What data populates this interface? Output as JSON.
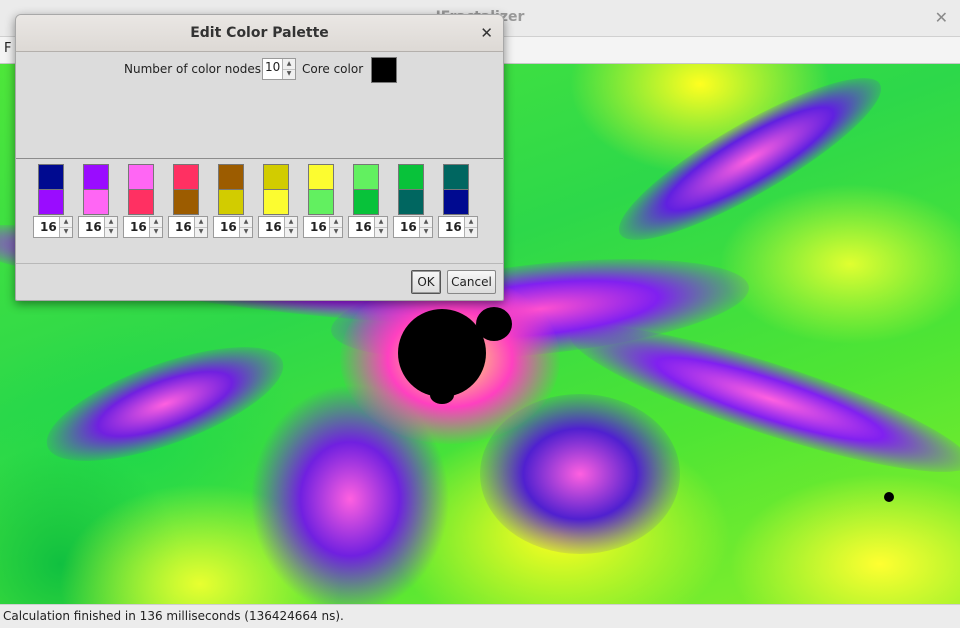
{
  "app": {
    "title": "JFractalizer"
  },
  "menu": {
    "first_item": "F"
  },
  "dialog": {
    "title": "Edit Color Palette",
    "nodes_label": "Number of color nodes",
    "nodes_value": "10",
    "core_label": "Core color",
    "core_color": "#000000",
    "nodes": [
      {
        "top": "#000a90",
        "bottom": "#9a0cff",
        "value": "16"
      },
      {
        "top": "#9a0cff",
        "bottom": "#ff66f4",
        "value": "16"
      },
      {
        "top": "#ff66f4",
        "bottom": "#ff3062",
        "value": "16"
      },
      {
        "top": "#ff3062",
        "bottom": "#9c5c00",
        "value": "16"
      },
      {
        "top": "#9c5c00",
        "bottom": "#d2cc00",
        "value": "16"
      },
      {
        "top": "#d2cc00",
        "bottom": "#fcfc30",
        "value": "16"
      },
      {
        "top": "#fcfc30",
        "bottom": "#62f060",
        "value": "16"
      },
      {
        "top": "#62f060",
        "bottom": "#08c23a",
        "value": "16"
      },
      {
        "top": "#08c23a",
        "bottom": "#006660",
        "value": "16"
      },
      {
        "top": "#006660",
        "bottom": "#000a90",
        "value": "16"
      }
    ],
    "ok_label": "OK",
    "cancel_label": "Cancel"
  },
  "status": {
    "text": "Calculation finished in 136 milliseconds (136424664 ns)."
  }
}
